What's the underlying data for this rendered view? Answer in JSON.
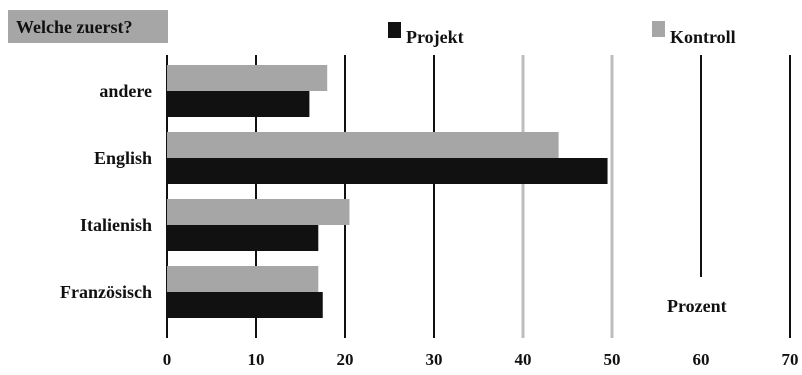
{
  "chart_data": {
    "type": "bar",
    "orientation": "horizontal",
    "title": "Welche zuerst?",
    "xlabel": "Prozent",
    "ylabel": "",
    "categories": [
      "andere",
      "English",
      "Italienish",
      "Französisch"
    ],
    "series": [
      {
        "name": "Kontroll",
        "values": [
          18,
          44,
          20.5,
          17
        ],
        "color": "#a6a6a6"
      },
      {
        "name": "Projekt",
        "values": [
          16,
          49.5,
          17,
          17.5
        ],
        "color": "#111111"
      }
    ],
    "xlim": [
      0,
      70
    ],
    "xticks": [
      0,
      10,
      20,
      30,
      40,
      50,
      60,
      70
    ],
    "grid": true,
    "legend_position": "top",
    "gridline_colors": {
      "0": "#111111",
      "10": "#111111",
      "20": "#111111",
      "30": "#111111",
      "40": "#bdbdbd",
      "50": "#bdbdbd",
      "60": "#111111",
      "70": "#111111"
    },
    "title_box_color": "#a6a6a6"
  }
}
